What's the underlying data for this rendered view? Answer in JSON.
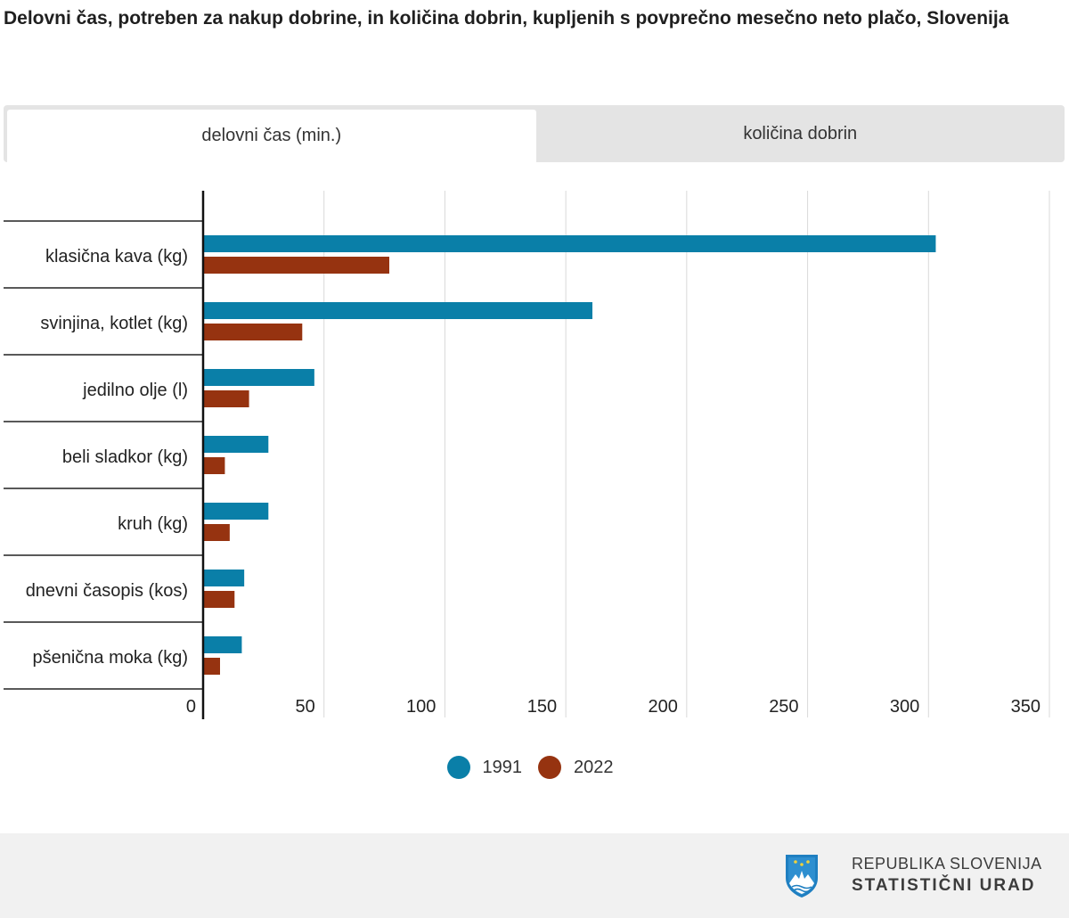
{
  "page": {
    "title": "Delovni čas, potreben za nakup dobrine, in količina dobrin, kupljenih s povprečno mesečno neto plačo, Slovenija"
  },
  "tabs": [
    {
      "label": "delovni čas (min.)",
      "active": true
    },
    {
      "label": "količina dobrin",
      "active": false
    }
  ],
  "chart_data": {
    "type": "bar",
    "orientation": "horizontal",
    "categories": [
      "klasična kava (kg)",
      "svinjina, kotlet (kg)",
      "jedilno olje (l)",
      "beli sladkor (kg)",
      "kruh (kg)",
      "dnevni časopis (kos)",
      "pšenična moka (kg)"
    ],
    "series": [
      {
        "name": "1991",
        "color": "#0a7fa8",
        "values": [
          303,
          161,
          46,
          27,
          27,
          17,
          16
        ]
      },
      {
        "name": "2022",
        "color": "#963310",
        "values": [
          77,
          41,
          19,
          9,
          11,
          13,
          7
        ]
      }
    ],
    "xlim": [
      0,
      350
    ],
    "xticks": [
      0,
      50,
      100,
      150,
      200,
      250,
      300,
      350
    ],
    "grid": true,
    "legend_position": "bottom"
  },
  "legend": [
    {
      "label": "1991",
      "color": "#0a7fa8"
    },
    {
      "label": "2022",
      "color": "#963310"
    }
  ],
  "footer": {
    "logo_line1": "REPUBLIKA SLOVENIJA",
    "logo_line2": "STATISTIČNI URAD"
  }
}
